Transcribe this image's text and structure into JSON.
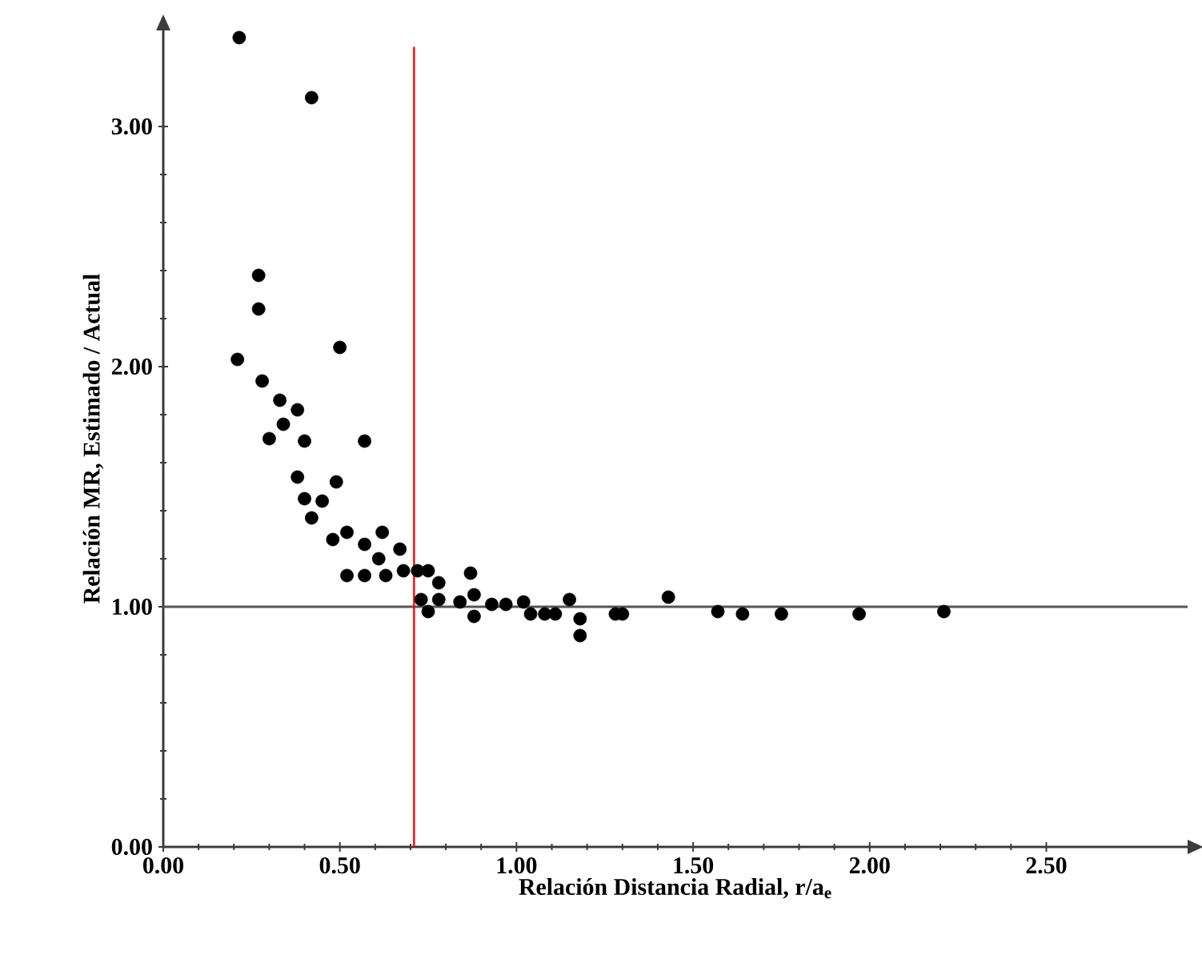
{
  "chart_data": {
    "type": "scatter",
    "xlabel": "Relación Distancia Radial, r/a$_{e}$",
    "ylabel": "Relación MR, Estimado / Actual",
    "x": [
      0.215,
      0.42,
      0.27,
      0.27,
      0.5,
      0.21,
      0.28,
      0.33,
      0.38,
      0.34,
      0.3,
      0.4,
      0.57,
      0.38,
      0.4,
      0.45,
      0.42,
      0.49,
      0.48,
      0.52,
      0.57,
      0.62,
      0.61,
      0.67,
      0.52,
      0.57,
      0.63,
      0.68,
      0.72,
      0.75,
      0.78,
      0.87,
      0.73,
      0.78,
      0.75,
      0.84,
      0.88,
      0.88,
      0.93,
      0.97,
      1.02,
      1.04,
      1.08,
      1.11,
      1.15,
      1.18,
      1.18,
      1.28,
      1.3,
      1.43,
      1.57,
      1.64,
      1.75,
      1.97,
      2.21
    ],
    "values": [
      3.37,
      3.12,
      2.38,
      2.24,
      2.08,
      2.03,
      1.94,
      1.86,
      1.82,
      1.76,
      1.7,
      1.69,
      1.69,
      1.54,
      1.45,
      1.44,
      1.37,
      1.52,
      1.28,
      1.31,
      1.26,
      1.31,
      1.2,
      1.24,
      1.13,
      1.13,
      1.13,
      1.15,
      1.15,
      1.15,
      1.1,
      1.14,
      1.03,
      1.03,
      0.98,
      1.02,
      1.05,
      0.96,
      1.01,
      1.01,
      1.02,
      0.97,
      0.97,
      0.97,
      1.03,
      0.95,
      0.88,
      0.97,
      0.97,
      1.04,
      0.98,
      0.97,
      0.97,
      0.97,
      0.98
    ],
    "color": "#000000",
    "marker": "circle",
    "xlim": [
      0,
      2.9
    ],
    "ylim": [
      0,
      3.4
    ],
    "xticks": [
      {
        "value": 0,
        "label": "0.00"
      },
      {
        "value": 0.5,
        "label": "0.50"
      },
      {
        "value": 1,
        "label": "1.00"
      },
      {
        "value": 1.5,
        "label": "1.50"
      },
      {
        "value": 2,
        "label": "2.00"
      },
      {
        "value": 2.5,
        "label": "2.50"
      }
    ],
    "yticks": [
      {
        "value": 0,
        "label": "0.00"
      },
      {
        "value": 1,
        "label": "1.00"
      },
      {
        "value": 2,
        "label": "2.00"
      },
      {
        "value": 3,
        "label": "3.00"
      }
    ],
    "ref_lines": [
      {
        "axis": "y",
        "value": 1,
        "color": "#555555"
      },
      {
        "axis": "x",
        "value": 0.71,
        "color": "#ff0000"
      }
    ]
  }
}
